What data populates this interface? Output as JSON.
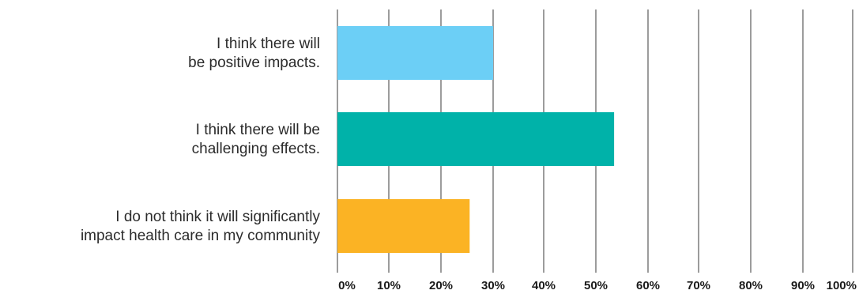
{
  "chart_data": {
    "type": "bar",
    "orientation": "horizontal",
    "title": "",
    "xlabel": "",
    "ylabel": "",
    "categories": [
      [
        "I think there will",
        "be positive impacts."
      ],
      [
        "I think there will be",
        "challenging effects."
      ],
      [
        "I do not think it will significantly",
        "impact health care in my community"
      ]
    ],
    "values": [
      30,
      53.5,
      25.5
    ],
    "colors": [
      "#6ccff6",
      "#00b2a9",
      "#fbb324"
    ],
    "xlim": [
      0,
      100
    ],
    "xticks": [
      "0%",
      "10%",
      "20%",
      "30%",
      "40%",
      "50%",
      "60%",
      "70%",
      "80%",
      "90%",
      "100%"
    ],
    "grid": "vertical lines",
    "legend": "none"
  }
}
